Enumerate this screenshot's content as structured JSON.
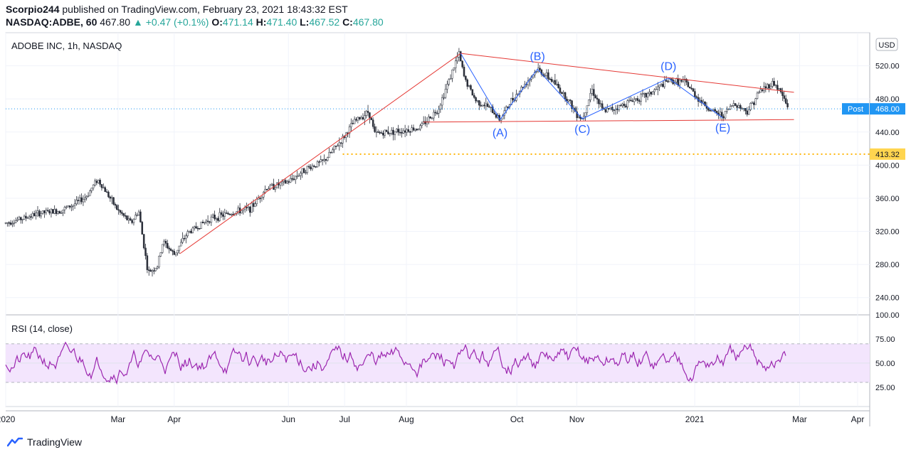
{
  "header": {
    "publisher": "Scorpio244",
    "published_text": "published on TradingView.com, February 23, 2021 18:43:32 EST",
    "symbol": "NASDAQ:ADBE, 60",
    "last": "467.80",
    "change": "+0.47 (+0.1%)",
    "o_label": "O:",
    "o": "471.14",
    "h_label": "H:",
    "h": "471.40",
    "l_label": "L:",
    "l": "467.52",
    "c_label": "C:",
    "c": "467.80"
  },
  "footer": {
    "brand": "TradingView"
  },
  "chart_data": [
    {
      "type": "candlestick",
      "title": "ADOBE INC, 1h, NASDAQ",
      "currency_button": "USD",
      "ylim": [
        220,
        560
      ],
      "y_ticks": [
        240,
        280,
        320,
        360,
        400,
        440,
        480,
        520
      ],
      "price_labels": [
        {
          "label": "Post",
          "value": 468.0,
          "text": "468.00",
          "color": "#2196f3"
        },
        {
          "label": "",
          "value": 413.32,
          "text": "413.32",
          "color": "#ffd54f"
        }
      ],
      "x_ticks": [
        "2020",
        "Mar",
        "Apr",
        "Jun",
        "Jul",
        "Aug",
        "Oct",
        "Nov",
        "2021",
        "Mar",
        "Apr"
      ],
      "x_tick_dates": [
        "2020-01-02",
        "2020-03-02",
        "2020-04-01",
        "2020-06-01",
        "2020-07-01",
        "2020-08-03",
        "2020-10-01",
        "2020-11-02",
        "2021-01-04",
        "2021-03-01",
        "2021-04-01"
      ],
      "price_path": [
        [
          "2020-01-02",
          330
        ],
        [
          "2020-01-10",
          335
        ],
        [
          "2020-01-20",
          342
        ],
        [
          "2020-01-31",
          345
        ],
        [
          "2020-02-07",
          352
        ],
        [
          "2020-02-14",
          362
        ],
        [
          "2020-02-20",
          383
        ],
        [
          "2020-02-24",
          370
        ],
        [
          "2020-03-02",
          345
        ],
        [
          "2020-03-09",
          330
        ],
        [
          "2020-03-13",
          345
        ],
        [
          "2020-03-18",
          270
        ],
        [
          "2020-03-23",
          278
        ],
        [
          "2020-03-26",
          308
        ],
        [
          "2020-04-01",
          292
        ],
        [
          "2020-04-08",
          318
        ],
        [
          "2020-04-20",
          335
        ],
        [
          "2020-05-01",
          342
        ],
        [
          "2020-05-12",
          348
        ],
        [
          "2020-05-20",
          372
        ],
        [
          "2020-06-01",
          380
        ],
        [
          "2020-06-10",
          395
        ],
        [
          "2020-06-20",
          405
        ],
        [
          "2020-06-30",
          432
        ],
        [
          "2020-07-06",
          452
        ],
        [
          "2020-07-14",
          465
        ],
        [
          "2020-07-17",
          438
        ],
        [
          "2020-07-24",
          440
        ],
        [
          "2020-08-01",
          442
        ],
        [
          "2020-08-10",
          445
        ],
        [
          "2020-08-20",
          468
        ],
        [
          "2020-08-27",
          510
        ],
        [
          "2020-08-31",
          535
        ],
        [
          "2020-09-03",
          505
        ],
        [
          "2020-09-09",
          478
        ],
        [
          "2020-09-16",
          470
        ],
        [
          "2020-09-22",
          455
        ],
        [
          "2020-09-28",
          478
        ],
        [
          "2020-10-06",
          500
        ],
        [
          "2020-10-12",
          516
        ],
        [
          "2020-10-20",
          502
        ],
        [
          "2020-10-28",
          480
        ],
        [
          "2020-11-02",
          462
        ],
        [
          "2020-11-05",
          456
        ],
        [
          "2020-11-10",
          492
        ],
        [
          "2020-11-16",
          465
        ],
        [
          "2020-11-24",
          470
        ],
        [
          "2020-12-01",
          478
        ],
        [
          "2020-12-10",
          485
        ],
        [
          "2020-12-21",
          502
        ],
        [
          "2020-12-30",
          500
        ],
        [
          "2021-01-06",
          480
        ],
        [
          "2021-01-13",
          465
        ],
        [
          "2021-01-19",
          460
        ],
        [
          "2021-01-25",
          475
        ],
        [
          "2021-02-01",
          465
        ],
        [
          "2021-02-08",
          490
        ],
        [
          "2021-02-15",
          500
        ],
        [
          "2021-02-19",
          488
        ],
        [
          "2021-02-23",
          468
        ]
      ],
      "annotations": [
        {
          "text": "(A)",
          "date": "2020-09-22",
          "price": 440
        },
        {
          "text": "(B)",
          "date": "2020-10-12",
          "price": 532
        },
        {
          "text": "(C)",
          "date": "2020-11-05",
          "price": 444
        },
        {
          "text": "(D)",
          "date": "2020-12-21",
          "price": 520
        },
        {
          "text": "(E)",
          "date": "2021-01-19",
          "price": 446
        }
      ],
      "trendlines": [
        {
          "color": "#e53935",
          "points": [
            [
              "2020-04-04",
              293
            ],
            [
              "2020-09-01",
              535
            ]
          ]
        },
        {
          "color": "#e53935",
          "points": [
            [
              "2020-09-01",
              535
            ],
            [
              "2021-02-26",
              488
            ]
          ]
        },
        {
          "color": "#e53935",
          "points": [
            [
              "2020-08-12",
              452
            ],
            [
              "2021-02-26",
              455
            ]
          ]
        },
        {
          "color": "#2962ff",
          "points": [
            [
              "2020-09-01",
              535
            ],
            [
              "2020-09-22",
              455
            ],
            [
              "2020-10-12",
              516
            ],
            [
              "2020-11-05",
              456
            ],
            [
              "2020-12-21",
              505
            ],
            [
              "2021-01-19",
              457
            ]
          ]
        }
      ],
      "support_line": {
        "value": 413.32,
        "from": "2020-06-30",
        "color": "#ffb300"
      },
      "last_price_line": {
        "value": 468.0,
        "color": "#2196f3"
      }
    },
    {
      "type": "line",
      "title": "RSI (14, close)",
      "ylim": [
        5,
        100
      ],
      "y_ticks": [
        25,
        50,
        75,
        100
      ],
      "y_tick_labels": [
        "25.00",
        "50.00",
        "75.00",
        "100.00"
      ],
      "band": [
        30,
        70
      ],
      "color": "#9c27b0"
    }
  ]
}
